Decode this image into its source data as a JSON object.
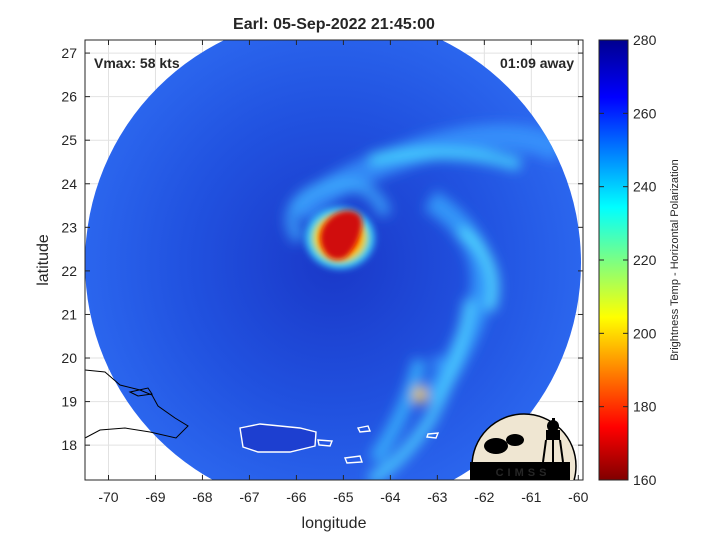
{
  "chart_data": {
    "type": "heatmap",
    "title": "Earl: 05-Sep-2022 21:45:00",
    "xlabel": "longitude",
    "ylabel": "latitude",
    "xlim": [
      -70.5,
      -59.9
    ],
    "ylim": [
      17.2,
      27.3
    ],
    "xticks": [
      -70,
      -69,
      -68,
      -67,
      -66,
      -65,
      -64,
      -63,
      -62,
      -61,
      -60
    ],
    "yticks": [
      18,
      19,
      20,
      21,
      22,
      23,
      24,
      25,
      26,
      27
    ],
    "grid": true,
    "colorbar": {
      "label": "Brightness Temp - Horizontal Polarization",
      "min": 160,
      "max": 280,
      "ticks": [
        160,
        180,
        200,
        220,
        240,
        260,
        280
      ],
      "colormap": "jet"
    },
    "annotations": {
      "left": "Vmax: 58 kts",
      "right": "01:09 away"
    },
    "storm_center": {
      "lon": -65.2,
      "lat": 22.7
    },
    "logo_text": "CIMSS"
  },
  "colors": {
    "background_cold": "#1d3fd8",
    "swath_mid": "#2f6df0",
    "band": "#3ad0ff",
    "core": "#e5120f",
    "land_outline": "#ffffff"
  }
}
